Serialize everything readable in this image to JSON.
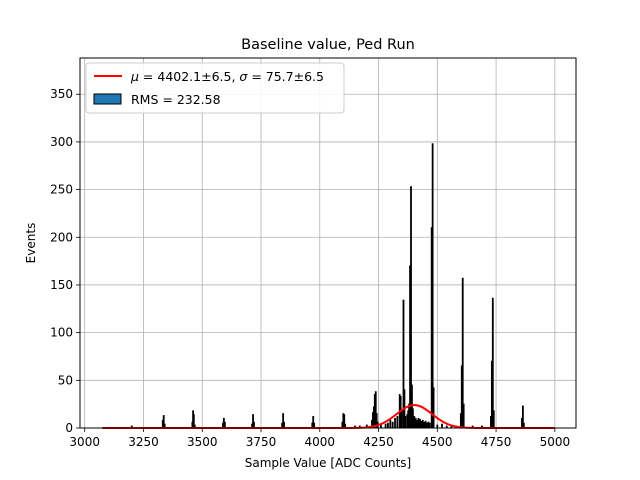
{
  "chart_data": {
    "type": "bar",
    "title": "Baseline value, Ped Run",
    "xlabel": "Sample Value [ADC Counts]",
    "ylabel": "Events",
    "xlim": [
      2980,
      5090
    ],
    "ylim": [
      0,
      388
    ],
    "xticks": [
      3000,
      3250,
      3500,
      3750,
      4000,
      4250,
      4500,
      4750,
      5000
    ],
    "yticks": [
      0,
      50,
      100,
      150,
      200,
      250,
      300,
      350
    ],
    "grid": true,
    "legend_position": "top-left",
    "legend": [
      {
        "kind": "line",
        "label": "$\\mu = 4402.1 \\pm 6.5$, $\\sigma = 75.7 \\pm 6.5$",
        "color": "#ff0000"
      },
      {
        "kind": "patch",
        "label": "RMS = 232.58",
        "color": "#1f77b4"
      }
    ],
    "legend_display": {
      "mu_symbol": "μ",
      "mu_value": " = 4402.1±6.5, ",
      "sigma_symbol": "σ",
      "sigma_value": " = 75.7±6.5",
      "rms_label": "RMS = 232.58"
    },
    "histogram": {
      "name": "RMS = 232.58",
      "fill": "#1f77b4",
      "edge": "#000000",
      "bins": [
        [
          3200,
          2
        ],
        [
          3332,
          8
        ],
        [
          3336,
          13
        ],
        [
          3340,
          4
        ],
        [
          3458,
          6
        ],
        [
          3461,
          18
        ],
        [
          3464,
          14
        ],
        [
          3468,
          3
        ],
        [
          3588,
          5
        ],
        [
          3592,
          10
        ],
        [
          3596,
          6
        ],
        [
          3712,
          4
        ],
        [
          3716,
          14
        ],
        [
          3720,
          6
        ],
        [
          3840,
          5
        ],
        [
          3844,
          15
        ],
        [
          3848,
          6
        ],
        [
          3968,
          5
        ],
        [
          3972,
          12
        ],
        [
          3976,
          5
        ],
        [
          4096,
          6
        ],
        [
          4100,
          15
        ],
        [
          4104,
          14
        ],
        [
          4108,
          4
        ],
        [
          4150,
          2
        ],
        [
          4170,
          2
        ],
        [
          4200,
          3
        ],
        [
          4222,
          8
        ],
        [
          4226,
          16
        ],
        [
          4230,
          22
        ],
        [
          4234,
          35
        ],
        [
          4238,
          38
        ],
        [
          4242,
          15
        ],
        [
          4246,
          6
        ],
        [
          4260,
          3
        ],
        [
          4280,
          4
        ],
        [
          4290,
          5
        ],
        [
          4300,
          8
        ],
        [
          4310,
          6
        ],
        [
          4320,
          10
        ],
        [
          4330,
          12
        ],
        [
          4340,
          35
        ],
        [
          4344,
          33
        ],
        [
          4348,
          18
        ],
        [
          4356,
          134
        ],
        [
          4360,
          40
        ],
        [
          4364,
          12
        ],
        [
          4372,
          14
        ],
        [
          4376,
          18
        ],
        [
          4380,
          25
        ],
        [
          4384,
          170
        ],
        [
          4388,
          253
        ],
        [
          4392,
          45
        ],
        [
          4396,
          20
        ],
        [
          4402,
          12
        ],
        [
          4408,
          10
        ],
        [
          4414,
          8
        ],
        [
          4420,
          10
        ],
        [
          4426,
          9
        ],
        [
          4432,
          7
        ],
        [
          4438,
          8
        ],
        [
          4444,
          6
        ],
        [
          4450,
          7
        ],
        [
          4456,
          5
        ],
        [
          4462,
          6
        ],
        [
          4468,
          5
        ],
        [
          4476,
          210
        ],
        [
          4480,
          298
        ],
        [
          4484,
          42
        ],
        [
          4500,
          3
        ],
        [
          4520,
          4
        ],
        [
          4540,
          2
        ],
        [
          4560,
          3
        ],
        [
          4580,
          2
        ],
        [
          4600,
          15
        ],
        [
          4604,
          65
        ],
        [
          4608,
          157
        ],
        [
          4612,
          25
        ],
        [
          4650,
          2
        ],
        [
          4690,
          2
        ],
        [
          4728,
          12
        ],
        [
          4732,
          70
        ],
        [
          4736,
          136
        ],
        [
          4740,
          18
        ],
        [
          4860,
          10
        ],
        [
          4864,
          23
        ],
        [
          4868,
          5
        ]
      ]
    },
    "fit": {
      "name": "Gaussian fit",
      "color": "#ff0000",
      "mu": 4402.1,
      "sigma": 75.7,
      "amplitude": 24,
      "x_range": [
        3075,
        5000
      ]
    }
  }
}
